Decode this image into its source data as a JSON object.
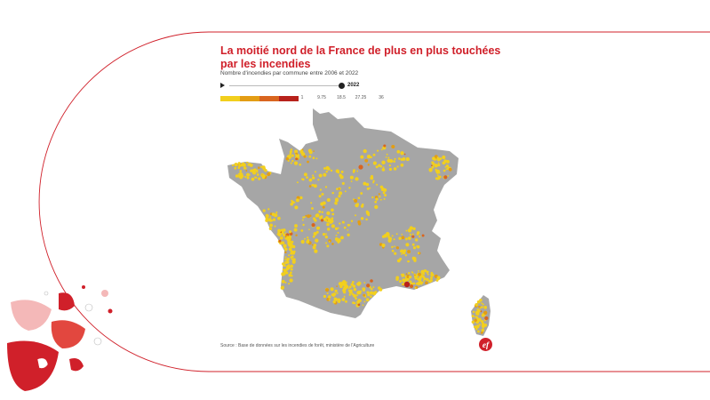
{
  "title": "La moitié nord de la France de plus en plus touchées par les incendies",
  "subtitle": "Nombre d'incendies par commune entre 2006 et 2022",
  "timeline": {
    "selected_year": "2022"
  },
  "legend": {
    "colors": [
      "#f2cf1d",
      "#e39d14",
      "#d9651f",
      "#b8221c"
    ],
    "ticks": [
      "1",
      "9.75",
      "18.5",
      "27.25",
      "36"
    ]
  },
  "map": {
    "region": "France métropolitaine",
    "base_color": "#a6a6a6",
    "accent_color": "#d0202a"
  },
  "source": "Source : Base de données sur les incendies de forêt, ministère de l'Agriculture",
  "logo_text": "ef"
}
